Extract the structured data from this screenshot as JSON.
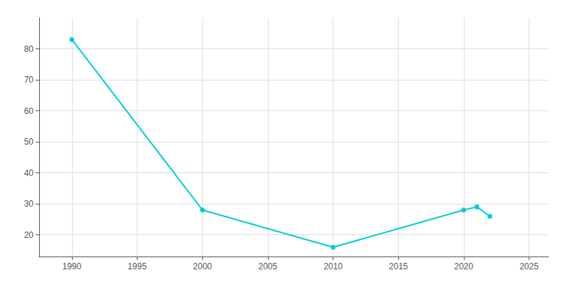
{
  "chart_data": {
    "type": "line",
    "x": [
      1990,
      2000,
      2010,
      2020,
      2021,
      2022
    ],
    "values": [
      83,
      28,
      16,
      28,
      29,
      26
    ],
    "color": "#00CED1",
    "marker": "circle",
    "xlim": [
      1987.5,
      2026.5
    ],
    "ylim": [
      13,
      90
    ],
    "xticks": [
      1990,
      1995,
      2000,
      2005,
      2010,
      2015,
      2020,
      2025
    ],
    "yticks": [
      20,
      30,
      40,
      50,
      60,
      70,
      80
    ],
    "grid": true
  }
}
